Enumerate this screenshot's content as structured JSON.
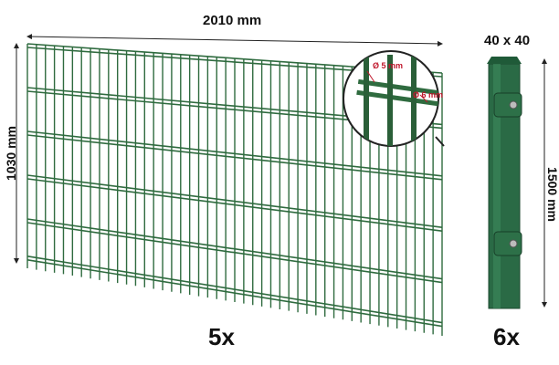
{
  "dimensions": {
    "panel_width": "2010 mm",
    "panel_height": "1030 mm",
    "post_height": "1500 mm",
    "post_section": "40 x 40",
    "wire_thin": "Ø 5 mm",
    "wire_thick": "Ø 6 mm"
  },
  "quantities": {
    "panels": "5x",
    "posts": "6x"
  },
  "colors": {
    "fence_green": "#2f6b3f",
    "post_green": "#2a6a45",
    "mark_red": "#c0162b"
  }
}
